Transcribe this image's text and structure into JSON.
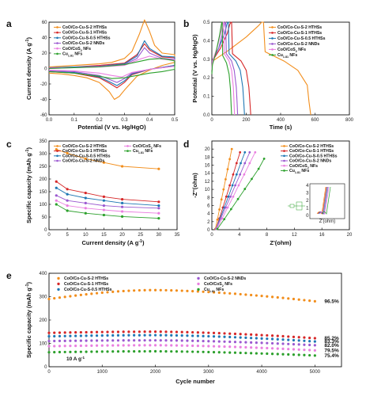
{
  "colors": {
    "s2": "#f28e1c",
    "s1": "#d62728",
    "s05": "#1f77b4",
    "nnd": "#9b59d0",
    "cos": "#ea7fe0",
    "cu": "#2ca02c"
  },
  "chart_data": [
    {
      "panel": "a",
      "type": "line",
      "xlabel": "Potential (V vs. Hg/HgO)",
      "ylabel": "Current density (A g-1)",
      "xlim": [
        0.0,
        0.5
      ],
      "ylim": [
        -60,
        60
      ],
      "xticks": [
        "0.0",
        "0.1",
        "0.2",
        "0.3",
        "0.4",
        "0.5"
      ],
      "yticks": [
        "-60",
        "-40",
        "-20",
        "0",
        "20",
        "40",
        "60"
      ],
      "legend_position": "top-left",
      "series": [
        {
          "name": "CoO/Co-Cu-S-2 HTHSs",
          "color_key": "s2",
          "x": [
            0.0,
            0.05,
            0.1,
            0.15,
            0.2,
            0.25,
            0.3,
            0.33,
            0.36,
            0.38,
            0.4,
            0.42,
            0.45,
            0.5,
            0.5,
            0.45,
            0.4,
            0.35,
            0.3,
            0.28,
            0.26,
            0.24,
            0.2,
            0.15,
            0.1,
            0.05,
            0.0
          ],
          "y": [
            2,
            3,
            4,
            5,
            6,
            8,
            13,
            22,
            45,
            63,
            48,
            30,
            20,
            18,
            8,
            4,
            -2,
            -10,
            -28,
            -36,
            -40,
            -30,
            -18,
            -12,
            -9,
            -7,
            -6
          ]
        },
        {
          "name": "CoO/Co-Cu-S-1 HTHSs",
          "color_key": "s1",
          "x": [
            0.0,
            0.1,
            0.2,
            0.3,
            0.35,
            0.38,
            0.4,
            0.45,
            0.5,
            0.5,
            0.4,
            0.33,
            0.3,
            0.27,
            0.24,
            0.2,
            0.1,
            0.0
          ],
          "y": [
            1,
            2,
            4,
            7,
            18,
            32,
            24,
            15,
            14,
            4,
            -1,
            -8,
            -18,
            -25,
            -19,
            -12,
            -6,
            -4
          ]
        },
        {
          "name": "CoO/Co-Cu-S-0.5 HTHSs",
          "color_key": "s05",
          "x": [
            0.0,
            0.1,
            0.2,
            0.3,
            0.35,
            0.38,
            0.4,
            0.45,
            0.5,
            0.5,
            0.4,
            0.33,
            0.3,
            0.27,
            0.24,
            0.2,
            0.1,
            0.0
          ],
          "y": [
            1,
            2,
            3,
            6,
            16,
            36,
            26,
            16,
            15,
            4,
            -1,
            -7,
            -16,
            -22,
            -17,
            -11,
            -5,
            -4
          ]
        },
        {
          "name": "CoO/Co-Cu-S-2 NNDs",
          "color_key": "nnd",
          "x": [
            0.0,
            0.1,
            0.2,
            0.3,
            0.35,
            0.38,
            0.4,
            0.45,
            0.5,
            0.5,
            0.4,
            0.33,
            0.3,
            0.27,
            0.24,
            0.2,
            0.1,
            0.0
          ],
          "y": [
            1,
            1,
            3,
            5,
            13,
            27,
            20,
            13,
            12,
            3,
            -1,
            -6,
            -13,
            -18,
            -14,
            -9,
            -4,
            -3
          ]
        },
        {
          "name": "CoO/CoS2 NFs",
          "color_key": "cos",
          "x": [
            0.0,
            0.1,
            0.2,
            0.3,
            0.36,
            0.4,
            0.45,
            0.5,
            0.5,
            0.4,
            0.33,
            0.29,
            0.25,
            0.2,
            0.1,
            0.0
          ],
          "y": [
            0,
            1,
            2,
            4,
            12,
            16,
            12,
            11,
            3,
            -1,
            -5,
            -11,
            -9,
            -6,
            -3,
            -2
          ]
        },
        {
          "name": "Cu1.81S NFs",
          "color_key": "cu",
          "x": [
            0.0,
            0.1,
            0.2,
            0.3,
            0.4,
            0.45,
            0.5,
            0.5,
            0.45,
            0.4,
            0.3,
            0.25,
            0.2,
            0.1,
            0.0
          ],
          "y": [
            0,
            1,
            2,
            5,
            12,
            13,
            10,
            -1,
            -4,
            -6,
            -12,
            -13,
            -10,
            -6,
            -4
          ]
        }
      ]
    },
    {
      "panel": "b",
      "type": "line",
      "xlabel": "Time (s)",
      "ylabel": "Potential (V vs. Hg/HgO)",
      "xlim": [
        0,
        800
      ],
      "ylim": [
        0.0,
        0.5
      ],
      "xticks": [
        "0",
        "200",
        "400",
        "600",
        "800"
      ],
      "yticks": [
        "0.0",
        "0.1",
        "0.2",
        "0.3",
        "0.4",
        "0.5"
      ],
      "legend_position": "top-right",
      "series": [
        {
          "name": "CoO/Co-Cu-S-2 HTHSs",
          "color_key": "s2",
          "x": [
            0,
            5,
            100,
            200,
            270,
            290,
            300,
            310,
            420,
            500,
            555,
            565,
            575
          ],
          "y": [
            0.24,
            0.29,
            0.35,
            0.42,
            0.48,
            0.5,
            0.5,
            0.34,
            0.29,
            0.24,
            0.16,
            0.07,
            0.0
          ]
        },
        {
          "name": "CoO/Co-Cu-S-1 HTHSs",
          "color_key": "s1",
          "x": [
            0,
            3,
            50,
            90,
            105,
            112,
            115,
            120,
            170,
            200,
            215,
            222,
            226
          ],
          "y": [
            0.24,
            0.29,
            0.36,
            0.44,
            0.49,
            0.5,
            0.5,
            0.33,
            0.29,
            0.24,
            0.15,
            0.06,
            0.0
          ]
        },
        {
          "name": "CoO/Co-Cu-S-0.5 HTHSs",
          "color_key": "s05",
          "x": [
            0,
            3,
            40,
            75,
            88,
            93,
            96,
            100,
            140,
            165,
            180,
            186,
            190
          ],
          "y": [
            0.24,
            0.29,
            0.36,
            0.44,
            0.49,
            0.5,
            0.5,
            0.33,
            0.29,
            0.24,
            0.15,
            0.06,
            0.0
          ]
        },
        {
          "name": "CoO/Co-Cu-S-2 NNDs",
          "color_key": "nnd",
          "x": [
            0,
            3,
            40,
            62,
            74,
            78,
            80,
            84,
            115,
            130,
            142,
            147,
            150
          ],
          "y": [
            0.24,
            0.29,
            0.36,
            0.44,
            0.49,
            0.5,
            0.5,
            0.33,
            0.29,
            0.24,
            0.15,
            0.06,
            0.0
          ]
        },
        {
          "name": "CoO/CoS2 NFs",
          "color_key": "cos",
          "x": [
            0,
            3,
            30,
            52,
            62,
            66,
            68,
            72,
            100,
            115,
            125,
            129,
            132
          ],
          "y": [
            0.24,
            0.29,
            0.36,
            0.44,
            0.49,
            0.5,
            0.5,
            0.33,
            0.29,
            0.24,
            0.15,
            0.06,
            0.0
          ]
        },
        {
          "name": "Cu1.81S NFs",
          "color_key": "cu",
          "x": [
            0,
            3,
            25,
            45,
            54,
            58,
            60,
            63,
            85,
            100,
            108,
            112,
            115
          ],
          "y": [
            0.22,
            0.27,
            0.34,
            0.43,
            0.48,
            0.5,
            0.5,
            0.32,
            0.28,
            0.22,
            0.14,
            0.05,
            0.0
          ]
        }
      ]
    },
    {
      "panel": "c",
      "type": "line",
      "xlabel": "Current density (A g-1)",
      "ylabel": "Specific capacity (mAh g-1)",
      "xlim": [
        0,
        35
      ],
      "ylim": [
        0,
        350
      ],
      "xticks": [
        "0",
        "5",
        "10",
        "15",
        "20",
        "25",
        "30",
        "35"
      ],
      "yticks": [
        "0",
        "50",
        "100",
        "150",
        "200",
        "250",
        "300",
        "350"
      ],
      "x_values": [
        2,
        5,
        10,
        15,
        20,
        30
      ],
      "legend_position": "top",
      "series": [
        {
          "name": "CoO/Co-Cu-S-2 HTHSs",
          "color_key": "s2",
          "values": [
            317,
            302,
            280,
            265,
            250,
            240
          ]
        },
        {
          "name": "CoO/Co-Cu-S-1 HTHSs",
          "color_key": "s1",
          "values": [
            190,
            160,
            145,
            130,
            120,
            110
          ]
        },
        {
          "name": "CoO/Co-Cu-S-0.5 HTHSs",
          "color_key": "s05",
          "values": [
            165,
            140,
            125,
            115,
            105,
            95
          ]
        },
        {
          "name": "CoO/Co-Cu-S-2 NNDs",
          "color_key": "nnd",
          "values": [
            135,
            115,
            105,
            95,
            90,
            85
          ]
        },
        {
          "name": "CoO/CoS2 NFs",
          "color_key": "cos",
          "values": [
            115,
            95,
            85,
            78,
            72,
            65
          ]
        },
        {
          "name": "Cu1.81S NFs",
          "color_key": "cu",
          "values": [
            100,
            75,
            65,
            58,
            52,
            45
          ]
        }
      ]
    },
    {
      "panel": "d",
      "type": "scatter",
      "xlabel": "Z'(ohm)",
      "ylabel": "-Z''(ohm)",
      "xlim": [
        0,
        20
      ],
      "ylim": [
        0,
        22
      ],
      "xticks": [
        "0",
        "4",
        "8",
        "12",
        "16",
        "20"
      ],
      "yticks": [
        "0",
        "2",
        "4",
        "6",
        "8",
        "10",
        "12",
        "14",
        "16",
        "18",
        "20"
      ],
      "legend_position": "top-right",
      "series": [
        {
          "name": "CoO/Co-Cu-S-2 HTHSs",
          "color_key": "s2",
          "x": [
            0.5,
            0.8,
            1.1,
            1.4,
            1.7,
            2.0,
            2.3,
            2.6,
            2.9
          ],
          "y": [
            0.2,
            2.5,
            5,
            7.5,
            10,
            12.5,
            15,
            17.5,
            20
          ]
        },
        {
          "name": "CoO/Co-Cu-S-1 HTHSs",
          "color_key": "s1",
          "x": [
            0.6,
            1.1,
            1.6,
            2.1,
            2.6,
            3.1,
            3.6,
            4.1
          ],
          "y": [
            0.2,
            2.8,
            5.5,
            8.2,
            11,
            13.7,
            16.5,
            19.2
          ]
        },
        {
          "name": "CoO/Co-Cu-S-0.5 HTHSs",
          "color_key": "s05",
          "x": [
            0.6,
            1.2,
            1.8,
            2.4,
            3.0,
            3.6,
            4.2,
            4.8
          ],
          "y": [
            0.2,
            2.8,
            5.5,
            8.2,
            11,
            13.7,
            16.5,
            19.2
          ]
        },
        {
          "name": "CoO/Co-Cu-S-2 NNDs",
          "color_key": "nnd",
          "x": [
            0.6,
            1.3,
            2.0,
            2.7,
            3.4,
            4.1,
            4.8,
            5.5
          ],
          "y": [
            0.2,
            2.8,
            5.5,
            8.2,
            11,
            13.7,
            16.5,
            19.2
          ]
        },
        {
          "name": "CoO/CoS2 NFs",
          "color_key": "cos",
          "x": [
            0.7,
            1.5,
            2.3,
            3.1,
            3.9,
            4.7,
            5.5,
            6.3
          ],
          "y": [
            0.2,
            2.8,
            5.5,
            8.2,
            11,
            13.7,
            16.5,
            19.2
          ]
        },
        {
          "name": "Cu1.81S NFs",
          "color_key": "cu",
          "x": [
            0.8,
            1.8,
            2.8,
            3.8,
            4.8,
            5.8,
            6.8,
            7.6
          ],
          "y": [
            0.2,
            2.6,
            5.1,
            7.6,
            10.1,
            12.6,
            15.1,
            17.6
          ]
        }
      ],
      "inset": {
        "xlabel": "Z'(ohm)",
        "ylabel": "-Z''(ohm)",
        "yticks": [
          "4",
          "3",
          "2",
          "1",
          "0"
        ],
        "series_x_offsets": [
          1.0,
          1.2,
          1.4,
          1.6,
          1.8,
          2.2
        ],
        "circuit_label": "equivalent circuit"
      }
    },
    {
      "panel": "e",
      "type": "scatter",
      "xlabel": "Cycle number",
      "ylabel": "Specific capacity (mAh g-1)",
      "xlim": [
        0,
        5500
      ],
      "ylim": [
        0,
        400
      ],
      "xticks": [
        "0",
        "1000",
        "2000",
        "3000",
        "4000",
        "5000"
      ],
      "yticks": [
        "0",
        "100",
        "200",
        "300",
        "400"
      ],
      "annotation": "10 A g-1",
      "legend_position": "top",
      "series": [
        {
          "name": "CoO/Co-Cu-S-2 HTHSs",
          "color_key": "s2",
          "start": 290,
          "peak": 328,
          "end": 280,
          "retention": "96.5%"
        },
        {
          "name": "CoO/Co-Cu-S-1 HTHSs",
          "color_key": "s1",
          "start": 145,
          "peak": 150,
          "end": 122,
          "retention": "85.2%"
        },
        {
          "name": "CoO/Co-Cu-S-0.5 HTHSs",
          "color_key": "s05",
          "start": 130,
          "peak": 135,
          "end": 108,
          "retention": "83.3%"
        },
        {
          "name": "CoO/Co-Cu-S-2 NNDs",
          "color_key": "nnd",
          "start": 110,
          "peak": 113,
          "end": 92,
          "retention": "82.0%"
        },
        {
          "name": "CoO/CoS2 NFs",
          "color_key": "cos",
          "start": 88,
          "peak": 92,
          "end": 70,
          "retention": "79.5%"
        },
        {
          "name": "Cu1.81S NFs",
          "color_key": "cu",
          "start": 62,
          "peak": 66,
          "end": 48,
          "retention": "75.4%"
        }
      ]
    }
  ]
}
